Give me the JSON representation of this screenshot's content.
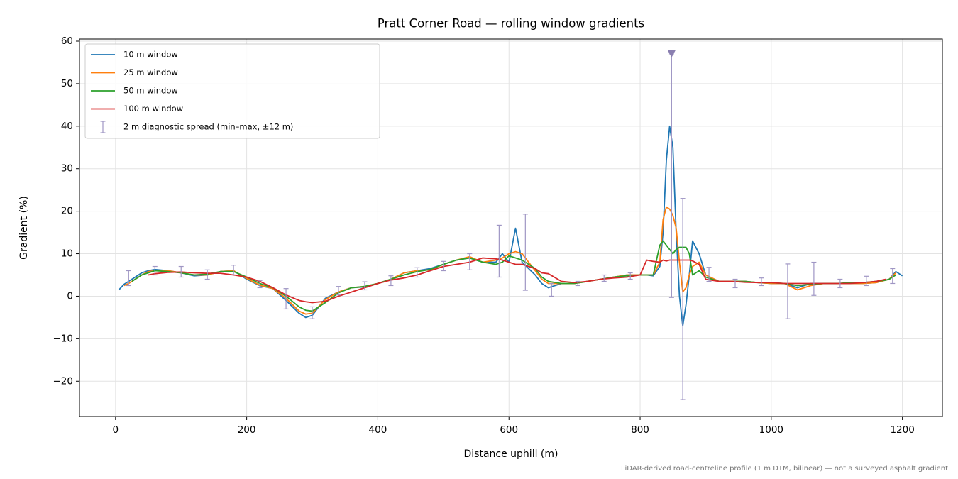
{
  "chart_data": {
    "type": "line",
    "title": "Pratt Corner Road — rolling window gradients",
    "x_label": "Distance uphill (m)",
    "y_label": "Gradient (%)",
    "footnote": "LiDAR-derived road-centreline profile (1 m DTM, bilinear) — not a surveyed asphalt gradient",
    "xlim": [
      -55,
      1261
    ],
    "ylim": [
      -28.3,
      60.5
    ],
    "xticks": [
      0,
      200,
      400,
      600,
      800,
      1000,
      1200
    ],
    "yticks": [
      {
        "value": -20,
        "label": "−20"
      },
      {
        "value": -10,
        "label": "−10"
      },
      0,
      10,
      20,
      30,
      40,
      50,
      60
    ],
    "grid": true,
    "legend": "upper left",
    "x": [
      5,
      13,
      20,
      25,
      40,
      50,
      60,
      80,
      100,
      120,
      140,
      160,
      180,
      200,
      220,
      240,
      260,
      280,
      290,
      300,
      320,
      340,
      360,
      380,
      400,
      420,
      440,
      460,
      480,
      500,
      520,
      540,
      560,
      580,
      590,
      600,
      610,
      620,
      640,
      650,
      660,
      680,
      700,
      720,
      740,
      760,
      780,
      800,
      810,
      820,
      830,
      835,
      840,
      845,
      850,
      855,
      860,
      865,
      870,
      875,
      880,
      890,
      900,
      920,
      940,
      960,
      980,
      1000,
      1020,
      1040,
      1060,
      1080,
      1100,
      1120,
      1140,
      1160,
      1175,
      1180,
      1190,
      1200
    ],
    "series": [
      {
        "name": "10 m window",
        "color": "#1f77b4",
        "values": [
          1.5,
          2.8,
          3.5,
          4,
          5.5,
          6,
          6.3,
          6,
          5.5,
          4.8,
          5,
          5.8,
          6,
          4,
          2.5,
          1.8,
          -1,
          -4,
          -5,
          -4.5,
          -0.5,
          1,
          2,
          2.2,
          3,
          4,
          5.5,
          6,
          6.5,
          7.5,
          8.5,
          9,
          8,
          8,
          10,
          8,
          16,
          8,
          5,
          3,
          2,
          3,
          3,
          3.5,
          4,
          4.5,
          5,
          5,
          5,
          4.8,
          7,
          15,
          32,
          40,
          35,
          15,
          0,
          -7,
          -2,
          5,
          13,
          10,
          5,
          3.5,
          3.5,
          3.5,
          3.2,
          3,
          3,
          2,
          3,
          3,
          3,
          3,
          3,
          3.2,
          3.8,
          4,
          5.8,
          4.8
        ]
      },
      {
        "name": "25 m window",
        "color": "#ff7f0e",
        "values": [
          null,
          2.5,
          3,
          3.5,
          5,
          5.8,
          6,
          6,
          5.5,
          5,
          5,
          5.8,
          6,
          4.2,
          2.6,
          1.8,
          -0.5,
          -3.5,
          -4.2,
          -4,
          -0.8,
          1,
          2,
          2.3,
          3,
          4,
          5.5,
          6,
          6.2,
          7.5,
          8.5,
          9.3,
          8,
          8.5,
          9,
          10,
          10.5,
          10,
          6,
          4,
          3,
          3,
          3,
          3.5,
          4,
          4.5,
          5,
          5,
          5,
          5,
          8,
          18,
          21,
          20.5,
          19,
          16,
          8,
          1,
          2,
          5,
          7,
          8,
          5,
          3.5,
          3.5,
          3.5,
          3.2,
          3,
          3,
          1.5,
          2.5,
          3,
          3,
          3,
          3,
          3.2,
          3.8,
          4,
          5.5,
          null
        ]
      },
      {
        "name": "50 m window",
        "color": "#2ca02c",
        "values": [
          null,
          null,
          null,
          3.5,
          5,
          5.5,
          6,
          5.8,
          5.5,
          5,
          5.2,
          5.8,
          5.8,
          4.5,
          3,
          2,
          0,
          -2.5,
          -3.3,
          -3.5,
          -1.5,
          0.8,
          2,
          2.3,
          3,
          4,
          5,
          5.8,
          6.3,
          7.5,
          8.5,
          9,
          8,
          7.5,
          8,
          9.5,
          9,
          8.5,
          6.5,
          4.5,
          3.5,
          3,
          3,
          3.5,
          4,
          4.5,
          4.8,
          5,
          5,
          5,
          12,
          13,
          12,
          11,
          10,
          11,
          11.5,
          11.5,
          11.5,
          10,
          5,
          6,
          4.5,
          3.5,
          3.5,
          3.5,
          3.2,
          3.2,
          3,
          2.5,
          2.8,
          3,
          3,
          3.2,
          3.2,
          3.5,
          3.8,
          4,
          5,
          null
        ]
      },
      {
        "name": "100 m window",
        "color": "#d62728",
        "values": [
          null,
          null,
          null,
          null,
          null,
          5,
          5.3,
          5.6,
          5.7,
          5.5,
          5.4,
          5.4,
          5,
          4.5,
          3.5,
          2,
          0.3,
          -1,
          -1.3,
          -1.5,
          -1.2,
          0,
          1,
          2,
          3,
          3.8,
          4.3,
          5,
          6,
          7,
          7.5,
          8,
          9,
          8.8,
          8.5,
          8,
          7.5,
          7.5,
          6.5,
          5.5,
          5.3,
          3.5,
          3.2,
          3.5,
          4,
          4.3,
          4.5,
          5,
          8.5,
          8.2,
          8,
          8.5,
          8.3,
          8.5,
          8.5,
          8.5,
          8.5,
          8.5,
          8.5,
          8.5,
          8.3,
          7.5,
          4,
          3.5,
          3.5,
          3.3,
          3.2,
          3.2,
          3,
          3,
          3,
          3,
          3,
          3,
          3.2,
          3.5,
          4,
          null,
          null,
          null
        ]
      }
    ],
    "errorbars": {
      "name": "2 m diagnostic spread (min–max, ±12 m)",
      "color": "#9f96c4",
      "x": [
        20,
        60,
        100,
        140,
        180,
        220,
        260,
        300,
        340,
        380,
        420,
        460,
        500,
        540,
        585,
        625,
        665,
        705,
        745,
        785,
        848,
        865,
        905,
        945,
        985,
        1025,
        1065,
        1105,
        1145,
        1185
      ],
      "low": [
        2.5,
        5,
        4.5,
        4,
        5,
        2,
        -3,
        -5.3,
        0.3,
        1.5,
        2.5,
        4.5,
        6,
        6.2,
        4.5,
        1.4,
        0,
        2.5,
        3.5,
        4,
        -0.3,
        -24.3,
        3.5,
        2,
        2.5,
        -5.3,
        0.2,
        2,
        2.5,
        3
      ],
      "high": [
        6,
        7,
        7,
        6.2,
        7.3,
        3.7,
        1.8,
        -2.5,
        2.3,
        3.4,
        4.8,
        6.7,
        8.2,
        10,
        16.7,
        19.3,
        3,
        3.5,
        5,
        5.5,
        57,
        23,
        6.8,
        4,
        4.3,
        7.6,
        8,
        4,
        4.7,
        6.5
      ]
    },
    "overflow_marker": {
      "x": 848,
      "y": 57,
      "color": "#8a7fb0"
    }
  }
}
